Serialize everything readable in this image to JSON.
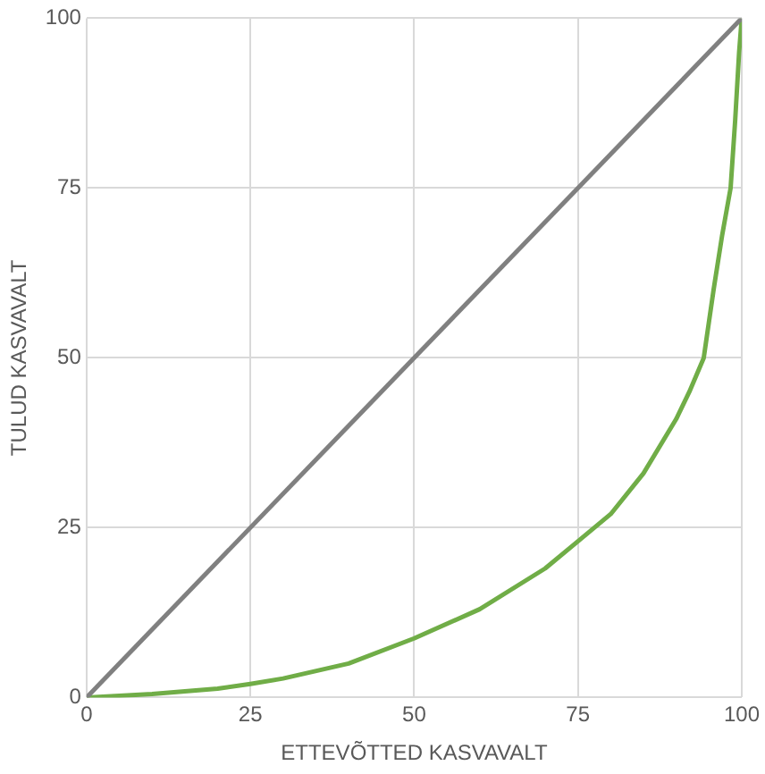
{
  "chart_data": {
    "type": "line",
    "xlabel": "ETTEVÕTTED KASVAVALT",
    "ylabel": "TULUD KASVAVALT",
    "xlim": [
      0,
      100
    ],
    "ylim": [
      0,
      100
    ],
    "xticks": [
      0,
      25,
      50,
      75,
      100
    ],
    "yticks": [
      0,
      25,
      50,
      75,
      100
    ],
    "grid": true,
    "legend": false,
    "marker": "none",
    "line_style": "solid",
    "series": [
      {
        "color": "#808080",
        "x": [
          0,
          100
        ],
        "values": [
          0,
          100
        ]
      },
      {
        "color": "#70ad47",
        "x": [
          0,
          10,
          20,
          25,
          30,
          40,
          50,
          60,
          70,
          75,
          80,
          85,
          90,
          92,
          94.2,
          95.7,
          97,
          98.3,
          99,
          99.6,
          100
        ],
        "values": [
          0,
          0.5,
          1.3,
          2,
          2.8,
          5,
          8.7,
          13,
          19,
          23,
          27,
          33,
          41,
          45,
          50,
          60,
          68,
          75,
          85,
          95,
          100
        ]
      }
    ]
  }
}
